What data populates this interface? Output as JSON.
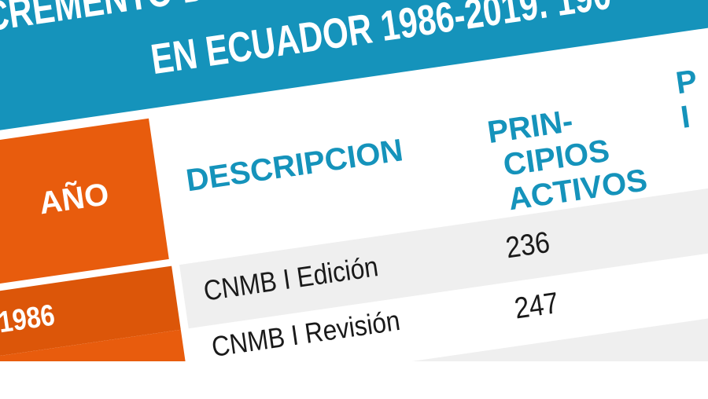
{
  "title": {
    "line1": "NCREMENTO DE L",
    "line2": "EN ECUADOR 1986-2019. 190"
  },
  "colors": {
    "blue": "#1593bb",
    "orange": "#e85c0d",
    "orange_dark": "#dc5609",
    "row_gray": "#efefef"
  },
  "table": {
    "headers": {
      "year": "AÑO",
      "description": "DESCRIPCION",
      "active_ingredients": [
        "PRIN-",
        "CIPIOS",
        "ACTIVOS"
      ],
      "third": [
        "P",
        "I"
      ]
    },
    "rows": [
      {
        "year": "1986",
        "description": "CNMB I Edición",
        "active_ingredients": "236"
      },
      {
        "year": "",
        "description": "CNMB I Revisión",
        "active_ingredients": "247"
      }
    ]
  }
}
